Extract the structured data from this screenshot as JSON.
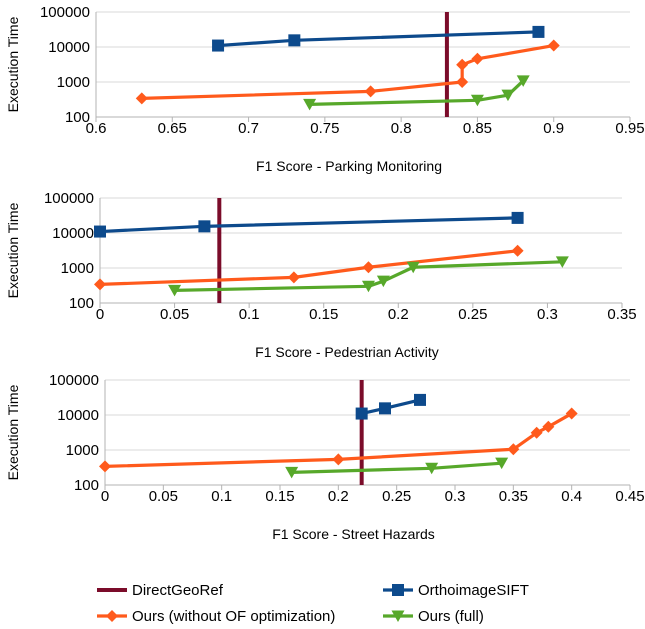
{
  "colors": {
    "directgeoref": "#7b0c2a",
    "orthoimagesift": "#0d4a8c",
    "ours_no_of": "#ff5a1c",
    "ours_full": "#57a82a",
    "axis": "#b3b3b3"
  },
  "legend": {
    "items": [
      {
        "label": "DirectGeoRef",
        "series": "directgeoref",
        "marker": "none"
      },
      {
        "label": "OrthoimageSIFT",
        "series": "orthoimagesift",
        "marker": "square"
      },
      {
        "label": "Ours (without OF optimization)",
        "series": "ours_no_of",
        "marker": "diamond"
      },
      {
        "label": "Ours (full)",
        "series": "ours_full",
        "marker": "triangle"
      }
    ]
  },
  "chart_data": [
    {
      "type": "line",
      "xlabel": "F1 Score - Parking Monitoring",
      "ylabel": "Execution Time",
      "xlim": [
        0.6,
        0.95
      ],
      "xticks": [
        "0.6",
        "0.65",
        "0.7",
        "0.75",
        "0.8",
        "0.85",
        "0.9",
        "0.95"
      ],
      "ylim": [
        100,
        100000
      ],
      "yscale": "log",
      "yticks": [
        "100",
        "1000",
        "10000",
        "100000"
      ],
      "grid": "horizontal",
      "vline": {
        "name": "DirectGeoRef",
        "x": 0.83
      },
      "series": [
        {
          "name": "OrthoimageSIFT",
          "key": "orthoimagesift",
          "marker": "square",
          "points": [
            [
              0.68,
              11000
            ],
            [
              0.73,
              15500
            ],
            [
              0.89,
              27000
            ]
          ]
        },
        {
          "name": "Ours (without OF optimization)",
          "key": "ours_no_of",
          "marker": "diamond",
          "points": [
            [
              0.63,
              340
            ],
            [
              0.78,
              540
            ],
            [
              0.84,
              1000
            ],
            [
              0.84,
              3100
            ],
            [
              0.85,
              4600
            ],
            [
              0.9,
              11000
            ]
          ]
        },
        {
          "name": "Ours (full)",
          "key": "ours_full",
          "marker": "triangle",
          "points": [
            [
              0.74,
              230
            ],
            [
              0.85,
              300
            ],
            [
              0.87,
              420
            ],
            [
              0.88,
              1080
            ]
          ]
        }
      ]
    },
    {
      "type": "line",
      "xlabel": "F1 Score - Pedestrian Activity",
      "ylabel": "Execution Time",
      "xlim": [
        0,
        0.35
      ],
      "xticks": [
        "0",
        "0.05",
        "0.1",
        "0.15",
        "0.2",
        "0.25",
        "0.3",
        "0.35"
      ],
      "ylim": [
        100,
        100000
      ],
      "yscale": "log",
      "yticks": [
        "100",
        "1000",
        "10000",
        "100000"
      ],
      "grid": "horizontal",
      "vline": {
        "name": "DirectGeoRef",
        "x": 0.08
      },
      "series": [
        {
          "name": "OrthoimageSIFT",
          "key": "orthoimagesift",
          "marker": "square",
          "points": [
            [
              0,
              11000
            ],
            [
              0.07,
              15500
            ],
            [
              0.28,
              27000
            ]
          ]
        },
        {
          "name": "Ours (without OF optimization)",
          "key": "ours_no_of",
          "marker": "diamond",
          "points": [
            [
              0,
              340
            ],
            [
              0.13,
              540
            ],
            [
              0.18,
              1050
            ],
            [
              0.28,
              3100
            ]
          ]
        },
        {
          "name": "Ours (full)",
          "key": "ours_full",
          "marker": "triangle",
          "points": [
            [
              0.05,
              230
            ],
            [
              0.18,
              300
            ],
            [
              0.19,
              420
            ],
            [
              0.21,
              1050
            ],
            [
              0.31,
              1500
            ]
          ]
        }
      ]
    },
    {
      "type": "line",
      "xlabel": "F1 Score - Street Hazards",
      "ylabel": "Execution Time",
      "xlim": [
        0,
        0.45
      ],
      "xticks": [
        "0",
        "0.05",
        "0.1",
        "0.15",
        "0.2",
        "0.25",
        "0.3",
        "0.35",
        "0.4",
        "0.45"
      ],
      "ylim": [
        100,
        100000
      ],
      "yscale": "log",
      "yticks": [
        "100",
        "1000",
        "10000",
        "100000"
      ],
      "grid": "horizontal",
      "vline": {
        "name": "DirectGeoRef",
        "x": 0.22
      },
      "series": [
        {
          "name": "OrthoimageSIFT",
          "key": "orthoimagesift",
          "marker": "square",
          "points": [
            [
              0.22,
              11000
            ],
            [
              0.24,
              15500
            ],
            [
              0.27,
              27000
            ]
          ]
        },
        {
          "name": "Ours (without OF optimization)",
          "key": "ours_no_of",
          "marker": "diamond",
          "points": [
            [
              0,
              340
            ],
            [
              0.2,
              540
            ],
            [
              0.35,
              1050
            ],
            [
              0.37,
              3100
            ],
            [
              0.38,
              4600
            ],
            [
              0.4,
              11000
            ]
          ]
        },
        {
          "name": "Ours (full)",
          "key": "ours_full",
          "marker": "triangle",
          "points": [
            [
              0.16,
              230
            ],
            [
              0.28,
              300
            ],
            [
              0.34,
              420
            ]
          ]
        }
      ]
    }
  ]
}
